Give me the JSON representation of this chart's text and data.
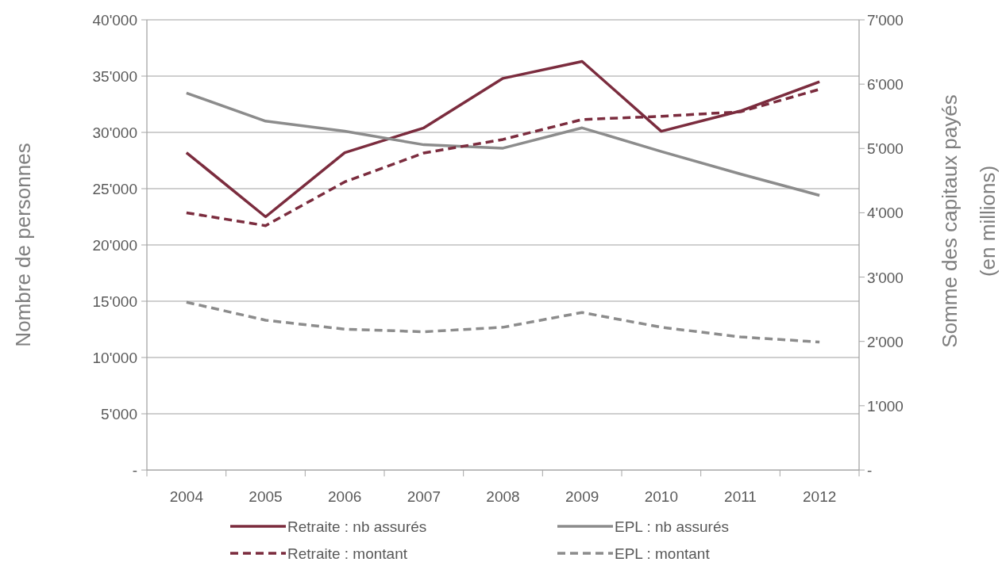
{
  "chart_data": {
    "type": "line",
    "categories": [
      "2004",
      "2005",
      "2006",
      "2007",
      "2008",
      "2009",
      "2010",
      "2011",
      "2012"
    ],
    "ylabel": "Nombre de personnes",
    "y2label": "Somme des capitaux payés (en millions)",
    "ylim": [
      0,
      40000
    ],
    "yticks": [
      {
        "value": 0,
        "label": "-"
      },
      {
        "value": 5000,
        "label": "5'000"
      },
      {
        "value": 10000,
        "label": "10'000"
      },
      {
        "value": 15000,
        "label": "15'000"
      },
      {
        "value": 20000,
        "label": "20'000"
      },
      {
        "value": 25000,
        "label": "25'000"
      },
      {
        "value": 30000,
        "label": "30'000"
      },
      {
        "value": 35000,
        "label": "35'000"
      },
      {
        "value": 40000,
        "label": "40'000"
      }
    ],
    "y2lim": [
      0,
      7000
    ],
    "y2ticks": [
      {
        "value": 0,
        "label": "-"
      },
      {
        "value": 1000,
        "label": "1'000"
      },
      {
        "value": 2000,
        "label": "2'000"
      },
      {
        "value": 3000,
        "label": "3'000"
      },
      {
        "value": 4000,
        "label": "4'000"
      },
      {
        "value": 5000,
        "label": "5'000"
      },
      {
        "value": 6000,
        "label": "6'000"
      },
      {
        "value": 7000,
        "label": "7'000"
      }
    ],
    "grid": "y",
    "legend": "bottom",
    "marker": "none",
    "series": [
      {
        "name": "Retraite : nb assurés",
        "color": "#7b2c3e",
        "line_style": "solid",
        "values": [
          28200,
          22500,
          28200,
          30400,
          34800,
          36300,
          30100,
          31900,
          34500
        ]
      },
      {
        "name": "EPL : nb assurés",
        "color": "#8c8c8c",
        "line_style": "solid",
        "values": [
          33500,
          31000,
          30100,
          28900,
          28600,
          30400,
          28300,
          26300,
          24400
        ]
      },
      {
        "name": "Retraite : montant",
        "color": "#7b2c3e",
        "line_style": "dashed",
        "axis": "y2",
        "values": [
          4000,
          3800,
          4480,
          4930,
          5140,
          5450,
          5500,
          5570,
          5920
        ]
      },
      {
        "name": "EPL : montant",
        "color": "#8c8c8c",
        "line_style": "dashed",
        "axis": "y2",
        "values": [
          2610,
          2330,
          2190,
          2150,
          2220,
          2450,
          2220,
          2070,
          1990
        ]
      }
    ]
  }
}
